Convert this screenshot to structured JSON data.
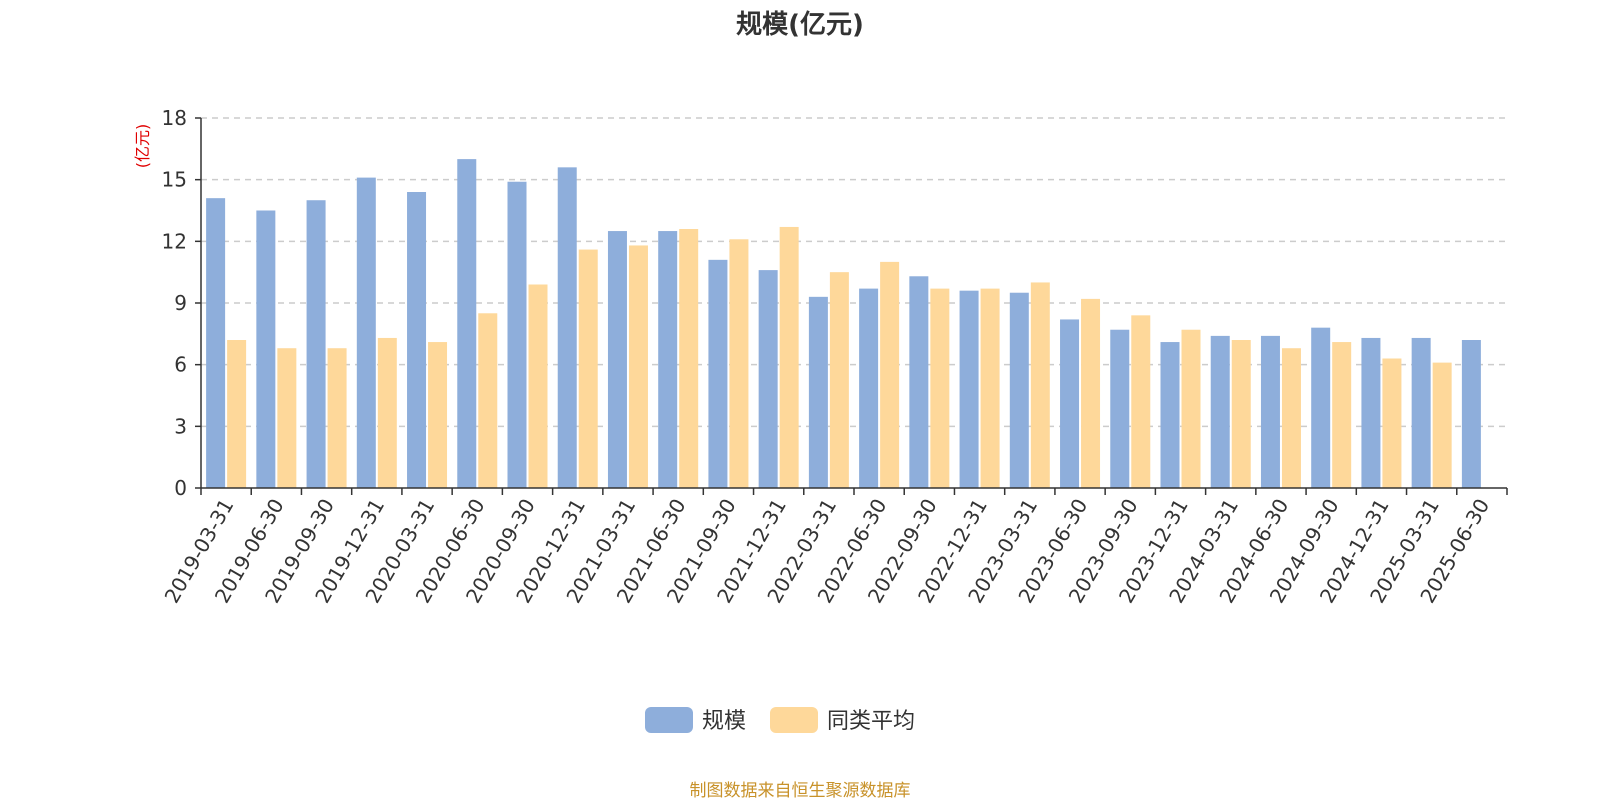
{
  "chart_data": {
    "type": "bar",
    "title": "规模(亿元)",
    "ylabel": "(亿元)",
    "ylim": [
      0,
      18
    ],
    "yticks": [
      0,
      3,
      6,
      9,
      12,
      15,
      18
    ],
    "grid": true,
    "legend_position": "bottom-center",
    "categories": [
      "2019-03-31",
      "2019-06-30",
      "2019-09-30",
      "2019-12-31",
      "2020-03-31",
      "2020-06-30",
      "2020-09-30",
      "2020-12-31",
      "2021-03-31",
      "2021-06-30",
      "2021-09-30",
      "2021-12-31",
      "2022-03-31",
      "2022-06-30",
      "2022-09-30",
      "2022-12-31",
      "2023-03-31",
      "2023-06-30",
      "2023-09-30",
      "2023-12-31",
      "2024-03-31",
      "2024-06-30",
      "2024-09-30",
      "2024-12-31",
      "2025-03-31",
      "2025-06-30"
    ],
    "series": [
      {
        "name": "规模",
        "color": "#8eaedb",
        "values": [
          14.1,
          13.5,
          14.0,
          15.1,
          14.4,
          16.0,
          14.9,
          15.6,
          12.5,
          12.5,
          11.1,
          10.6,
          9.3,
          9.7,
          10.3,
          9.6,
          9.5,
          8.2,
          7.7,
          7.1,
          7.4,
          7.4,
          7.8,
          7.3,
          7.3,
          7.2
        ]
      },
      {
        "name": "同类平均",
        "color": "#fed89a",
        "values": [
          7.2,
          6.8,
          6.8,
          7.3,
          7.1,
          8.5,
          9.9,
          11.6,
          11.8,
          12.6,
          12.1,
          12.7,
          10.5,
          11.0,
          9.7,
          9.7,
          10.0,
          9.2,
          8.4,
          7.7,
          7.2,
          6.8,
          7.1,
          6.3,
          6.1,
          null
        ]
      }
    ]
  },
  "colors": {
    "unit_label": "#e00000",
    "source_text": "#c8922a",
    "grid": "#cccccc",
    "axis": "#333333"
  },
  "source_note": "制图数据来自恒生聚源数据库"
}
